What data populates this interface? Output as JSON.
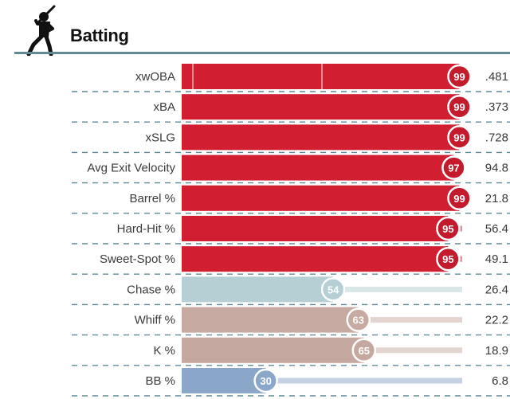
{
  "header": {
    "title": "Batting",
    "icon": "baseball-batter-icon",
    "rule_color": "#5f8a95"
  },
  "chart_data": {
    "type": "bar",
    "orientation": "horizontal",
    "title": "Batting",
    "xlim": [
      0,
      100
    ],
    "categories": [
      "xwOBA",
      "xBA",
      "xSLG",
      "Avg Exit Velocity",
      "Barrel %",
      "Hard-Hit %",
      "Sweet-Spot %",
      "Chase %",
      "Whiff %",
      "K %",
      "BB %"
    ],
    "percentiles": [
      99,
      99,
      99,
      97,
      99,
      95,
      95,
      54,
      63,
      65,
      30
    ],
    "stat_values": [
      ".481",
      ".373",
      ".728",
      "94.8",
      "21.8",
      "56.4",
      "49.1",
      "26.4",
      "22.2",
      "18.9",
      "6.8"
    ],
    "bar_colors": [
      "#d11e31",
      "#d11e31",
      "#d11e31",
      "#d11e31",
      "#d11e31",
      "#d11e31",
      "#d11e31",
      "#b5cfd4",
      "#c7aaa1",
      "#c5a9a0",
      "#8aa6c9"
    ],
    "circle_colors": [
      "#c31a2c",
      "#c31a2c",
      "#c31a2c",
      "#c31a2c",
      "#c31a2c",
      "#c31a2c",
      "#c31a2c",
      "#b5cfd4",
      "#c7aaa1",
      "#c5a9a0",
      "#8aa6c9"
    ],
    "grid": true,
    "gridlines_at": [
      0,
      50,
      100
    ]
  }
}
